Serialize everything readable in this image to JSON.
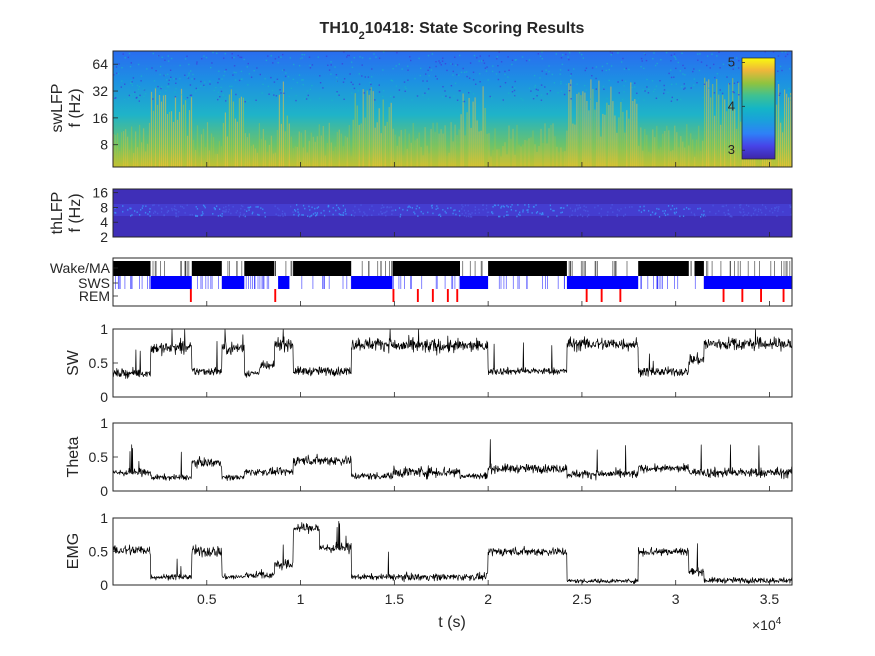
{
  "title": {
    "prefix": "TH10",
    "sub": "2",
    "suffix": "10418: State Scoring Results"
  },
  "x_axis": {
    "label": "t (s)",
    "ticks": [
      0.5,
      1,
      1.5,
      2,
      2.5,
      3,
      3.5
    ],
    "tick_labels": [
      "0.5",
      "1",
      "1.5",
      "2",
      "2.5",
      "3",
      "3.5"
    ],
    "range": [
      0,
      3.62
    ],
    "exponent_base": "×10",
    "exponent_power": "4"
  },
  "colors": {
    "axis": "#262626",
    "trace": "#000000",
    "wake": "#000000",
    "sws": "#0000ff",
    "rem": "#ff0000",
    "spectrogram_low": "#3e26a8",
    "spectrogram_high": "#f9fb0e"
  },
  "chart_data": [
    {
      "id": "swlfp",
      "type": "heatmap",
      "ylabel": [
        "swLFP",
        "f (Hz)"
      ],
      "yscale": "log",
      "yticks": [
        8,
        16,
        32,
        64
      ],
      "ytick_labels": [
        "8",
        "16",
        "32",
        "64"
      ],
      "ylim": [
        4.5,
        90
      ],
      "colormap": "parula",
      "colorbar": {
        "ticks": [
          3,
          4,
          5
        ],
        "tick_labels": [
          "3",
          "4",
          "5"
        ],
        "range": [
          2.8,
          5.1
        ],
        "placement": "inside-right"
      }
    },
    {
      "id": "thlfp",
      "type": "heatmap",
      "ylabel": [
        "thLFP",
        "f (Hz)"
      ],
      "yscale": "log",
      "yticks": [
        2,
        4,
        8,
        16
      ],
      "ytick_labels": [
        "2",
        "4",
        "8",
        "16"
      ],
      "ylim": [
        2,
        19
      ],
      "colormap": "parula"
    },
    {
      "id": "states",
      "type": "bar",
      "ytick_labels": [
        "Wake/MA",
        "SWS",
        "REM"
      ],
      "wake_bouts": [
        [
          0,
          0.2
        ],
        [
          0.42,
          0.58
        ],
        [
          0.7,
          0.86
        ],
        [
          0.96,
          1.27
        ],
        [
          1.49,
          1.85
        ],
        [
          2.0,
          2.42
        ],
        [
          2.8,
          3.07
        ],
        [
          3.1,
          3.15
        ]
      ],
      "sws_bouts": [
        [
          0.2,
          0.42
        ],
        [
          0.58,
          0.7
        ],
        [
          0.88,
          0.94
        ],
        [
          1.27,
          1.49
        ],
        [
          1.85,
          2.0
        ],
        [
          2.42,
          2.8
        ],
        [
          3.15,
          3.62
        ]
      ],
      "rem_bouts": [
        [
          0.41,
          0.42
        ],
        [
          0.86,
          0.87
        ],
        [
          1.49,
          1.5
        ],
        [
          1.62,
          1.63
        ],
        [
          1.7,
          1.71
        ],
        [
          1.78,
          1.79
        ],
        [
          1.83,
          1.84
        ],
        [
          2.52,
          2.53
        ],
        [
          2.6,
          2.61
        ],
        [
          2.7,
          2.71
        ],
        [
          3.25,
          3.26
        ],
        [
          3.35,
          3.36
        ],
        [
          3.45,
          3.46
        ],
        [
          3.57,
          3.58
        ]
      ]
    },
    {
      "id": "sw",
      "type": "line",
      "ylabel": "SW",
      "ylim": [
        0,
        1
      ],
      "yticks": [
        0,
        0.5,
        1
      ],
      "ytick_labels": [
        "0",
        "0.5",
        "1"
      ],
      "segments": [
        [
          0,
          0.2,
          0.35,
          0.06
        ],
        [
          0.2,
          0.42,
          0.72,
          0.09
        ],
        [
          0.42,
          0.58,
          0.38,
          0.06
        ],
        [
          0.58,
          0.7,
          0.72,
          0.09
        ],
        [
          0.7,
          0.78,
          0.35,
          0.05
        ],
        [
          0.78,
          0.86,
          0.45,
          0.06
        ],
        [
          0.86,
          0.96,
          0.78,
          0.09
        ],
        [
          0.96,
          1.27,
          0.38,
          0.06
        ],
        [
          1.27,
          1.49,
          0.78,
          0.09
        ],
        [
          1.49,
          1.85,
          0.75,
          0.1
        ],
        [
          1.85,
          2.0,
          0.75,
          0.08
        ],
        [
          2.0,
          2.42,
          0.38,
          0.05
        ],
        [
          2.42,
          2.8,
          0.78,
          0.09
        ],
        [
          2.8,
          3.07,
          0.37,
          0.06
        ],
        [
          3.07,
          3.15,
          0.55,
          0.08
        ],
        [
          3.15,
          3.62,
          0.78,
          0.09
        ]
      ]
    },
    {
      "id": "theta",
      "type": "line",
      "ylabel": "Theta",
      "ylim": [
        0,
        1
      ],
      "yticks": [
        0,
        0.5,
        1
      ],
      "ytick_labels": [
        "0",
        "0.5",
        "1"
      ],
      "segments": [
        [
          0,
          0.2,
          0.27,
          0.05
        ],
        [
          0.2,
          0.42,
          0.2,
          0.04
        ],
        [
          0.42,
          0.58,
          0.42,
          0.06
        ],
        [
          0.58,
          0.7,
          0.2,
          0.04
        ],
        [
          0.7,
          0.96,
          0.28,
          0.05
        ],
        [
          0.96,
          1.27,
          0.45,
          0.07
        ],
        [
          1.27,
          1.49,
          0.22,
          0.05
        ],
        [
          1.49,
          1.85,
          0.28,
          0.08
        ],
        [
          1.85,
          2.0,
          0.22,
          0.05
        ],
        [
          2.0,
          2.42,
          0.33,
          0.06
        ],
        [
          2.42,
          2.8,
          0.25,
          0.06
        ],
        [
          2.8,
          3.07,
          0.33,
          0.05
        ],
        [
          3.07,
          3.15,
          0.28,
          0.05
        ],
        [
          3.15,
          3.62,
          0.27,
          0.07
        ]
      ]
    },
    {
      "id": "emg",
      "type": "line",
      "ylabel": "EMG",
      "ylim": [
        0,
        1
      ],
      "yticks": [
        0,
        0.5,
        1
      ],
      "ytick_labels": [
        "0",
        "0.5",
        "1"
      ],
      "segments": [
        [
          0,
          0.2,
          0.52,
          0.08
        ],
        [
          0.2,
          0.42,
          0.12,
          0.04
        ],
        [
          0.42,
          0.58,
          0.5,
          0.08
        ],
        [
          0.58,
          0.7,
          0.12,
          0.04
        ],
        [
          0.7,
          0.86,
          0.15,
          0.05
        ],
        [
          0.86,
          0.96,
          0.3,
          0.07
        ],
        [
          0.96,
          1.1,
          0.85,
          0.07
        ],
        [
          1.1,
          1.27,
          0.55,
          0.07
        ],
        [
          1.27,
          1.49,
          0.12,
          0.04
        ],
        [
          1.49,
          2.0,
          0.12,
          0.05
        ],
        [
          2.0,
          2.42,
          0.5,
          0.06
        ],
        [
          2.42,
          2.8,
          0.06,
          0.03
        ],
        [
          2.8,
          3.07,
          0.5,
          0.07
        ],
        [
          3.07,
          3.15,
          0.2,
          0.05
        ],
        [
          3.15,
          3.62,
          0.07,
          0.04
        ]
      ]
    }
  ]
}
